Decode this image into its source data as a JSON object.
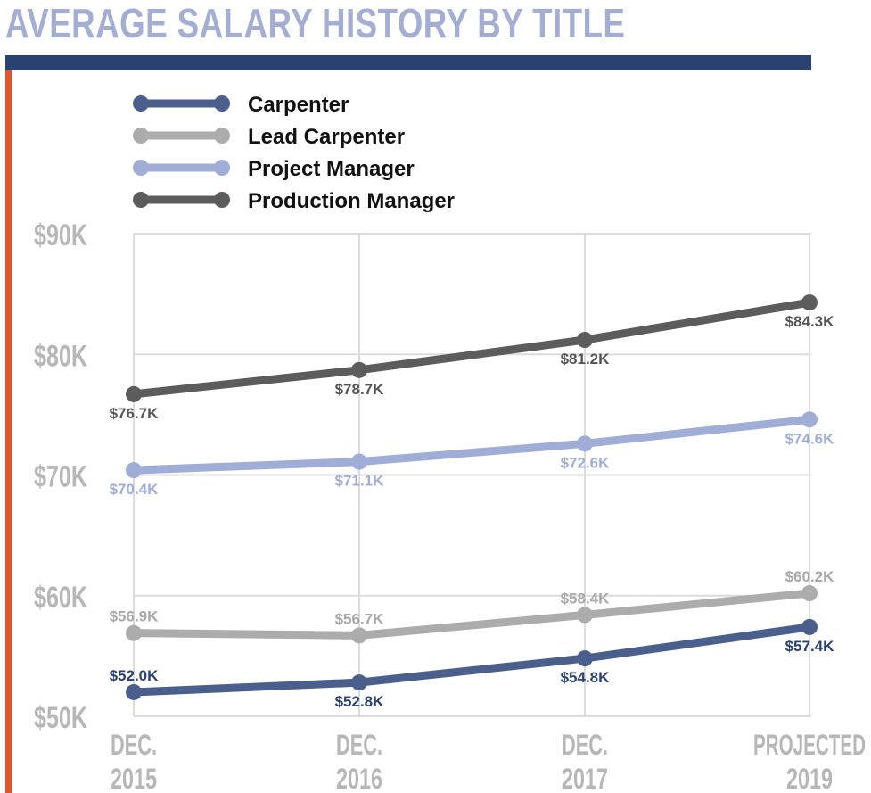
{
  "header": {
    "title": "AVERAGE SALARY HISTORY BY TITLE"
  },
  "colors": {
    "title": "#a3aed2",
    "topbar": "#2a4270",
    "sidebar": "#e0542e",
    "grid": "#dcdcdc"
  },
  "chart_data": {
    "type": "line",
    "title": "AVERAGE SALARY HISTORY BY TITLE",
    "xlabel": "",
    "ylabel": "",
    "categories": [
      [
        "DEC.",
        "2015"
      ],
      [
        "DEC.",
        "2016"
      ],
      [
        "DEC.",
        "2017"
      ],
      [
        "PROJECTED",
        "2019"
      ]
    ],
    "yticks": [
      "$90K",
      "$80K",
      "$70K",
      "$60K",
      "$50K"
    ],
    "ytick_values": [
      90,
      80,
      70,
      60,
      50
    ],
    "ylim": [
      50,
      90
    ],
    "grid": true,
    "legend_position": "top-left",
    "series": [
      {
        "name": "Carpenter",
        "color": "#4a5f8c",
        "label_color": "#2a4270",
        "values": [
          52.0,
          52.8,
          54.8,
          57.4
        ],
        "labels": [
          "$52.0K",
          "$52.8K",
          "$54.8K",
          "$57.4K"
        ],
        "label_pos": [
          "above",
          "below",
          "below",
          "below"
        ]
      },
      {
        "name": "Lead Carpenter",
        "color": "#acacac",
        "label_color": "#a8a8a8",
        "values": [
          56.9,
          56.7,
          58.4,
          60.2
        ],
        "labels": [
          "$56.9K",
          "$56.7K",
          "$58.4K",
          "$60.2K"
        ],
        "label_pos": [
          "above",
          "above",
          "above",
          "above"
        ]
      },
      {
        "name": "Project Manager",
        "color": "#9fadd7",
        "label_color": "#9fadd7",
        "values": [
          70.4,
          71.1,
          72.6,
          74.6
        ],
        "labels": [
          "$70.4K",
          "$71.1K",
          "$72.6K",
          "$74.6K"
        ],
        "label_pos": [
          "below",
          "below",
          "below",
          "below"
        ]
      },
      {
        "name": "Production Manager",
        "color": "#5c5c5c",
        "label_color": "#555555",
        "values": [
          76.7,
          78.7,
          81.2,
          84.3
        ],
        "labels": [
          "$76.7K",
          "$78.7K",
          "$81.2K",
          "$84.3K"
        ],
        "label_pos": [
          "below",
          "below",
          "below",
          "below"
        ]
      }
    ]
  }
}
